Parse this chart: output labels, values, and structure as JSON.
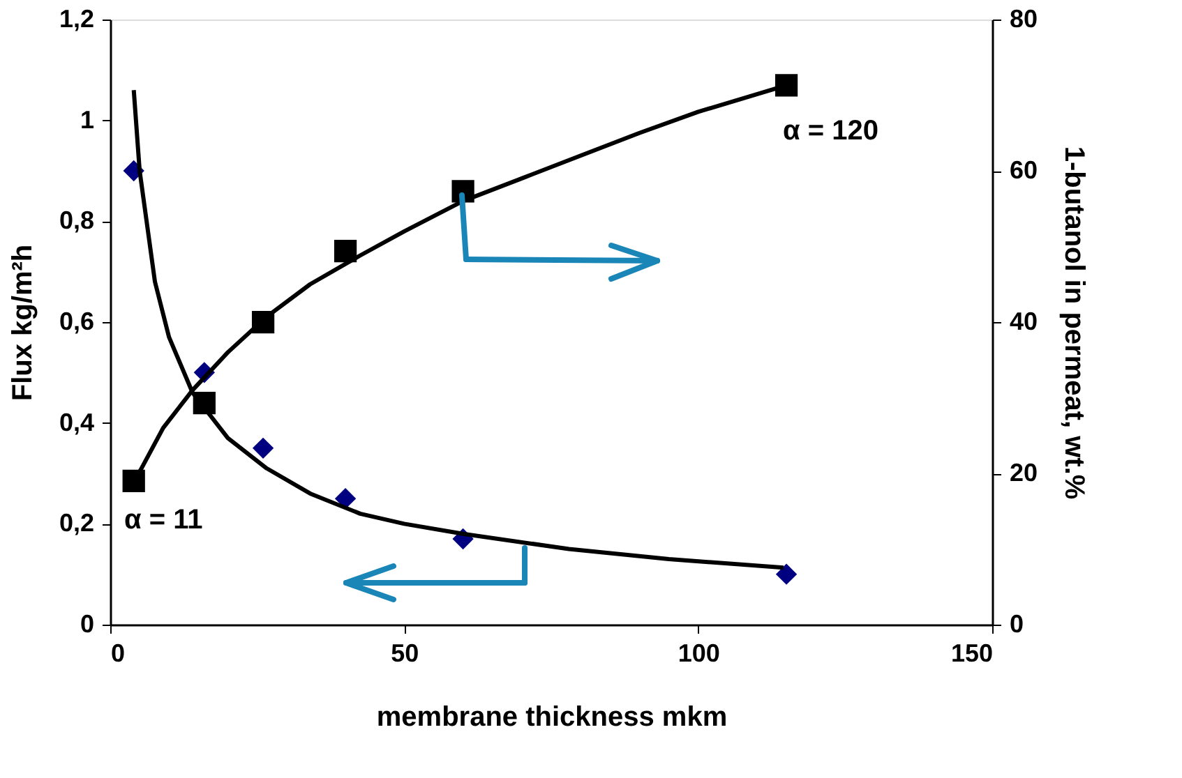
{
  "chart_data": {
    "type": "scatter",
    "xlabel": "membrane thickness mkm",
    "ylabel": "Flux kg/m²h",
    "y2label": "1-butanol in permeat, wt.%",
    "xlim": [
      0,
      150
    ],
    "xticks": [
      0,
      50,
      100,
      150
    ],
    "ylim": [
      0,
      1.2
    ],
    "yticks": [
      0,
      {
        "value": 0.2,
        "label": "0,2"
      },
      {
        "value": 0.4,
        "label": "0,4"
      },
      {
        "value": 0.6,
        "label": "0,6"
      },
      {
        "value": 0.8,
        "label": "0,8"
      },
      1,
      {
        "value": 1.2,
        "label": "1,2"
      }
    ],
    "y2lim": [
      0,
      80
    ],
    "y2ticks": [
      0,
      20,
      40,
      60,
      80
    ],
    "series": [
      {
        "type": "scatter",
        "marker": "diamond",
        "color": "#000080",
        "x": [
          4,
          16,
          26,
          40,
          60,
          115
        ],
        "values": [
          0.9,
          0.5,
          0.35,
          0.25,
          0.17,
          0.1
        ]
      },
      {
        "type": "scatter",
        "marker": "square",
        "color": "#000000",
        "axis": "y2",
        "x": [
          4,
          16,
          26,
          40,
          60,
          115
        ],
        "values": [
          19,
          29.3,
          40,
          49.4,
          57.3,
          71.3
        ]
      },
      {
        "type": "line",
        "marker": "none",
        "line_style": "solid",
        "color": "#000000",
        "x": [
          4,
          5,
          7.6,
          10,
          14,
          20,
          26.6,
          34,
          42.5,
          50,
          60,
          78,
          95,
          114.5
        ],
        "values": [
          1.06,
          0.9,
          0.68,
          0.57,
          0.46,
          0.37,
          0.31,
          0.26,
          0.22,
          0.2,
          0.18,
          0.15,
          0.13,
          0.113
        ]
      },
      {
        "type": "line",
        "marker": "none",
        "line_style": "solid",
        "color": "#000000",
        "axis": "y2",
        "x": [
          4,
          5.2,
          9,
          14,
          20,
          26.6,
          34,
          42.5,
          50,
          60,
          70,
          80,
          90,
          100,
          115
        ],
        "values": [
          19,
          20.5,
          26,
          31,
          36,
          40.7,
          45,
          48.8,
          52,
          56,
          59,
          62,
          65,
          67.8,
          71.3
        ]
      }
    ],
    "annotations": [
      "α = 11",
      "α = 120"
    ],
    "grid": false
  }
}
